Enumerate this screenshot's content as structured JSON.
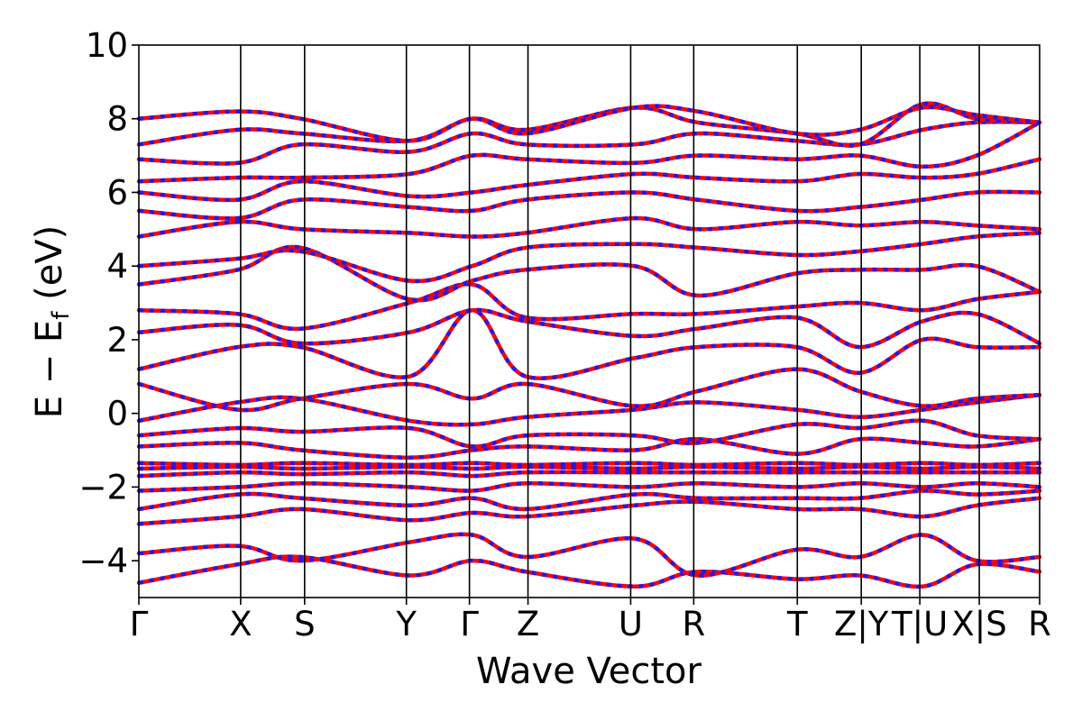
{
  "chart_data": {
    "type": "line",
    "title": "",
    "xlabel": "Wave Vector",
    "ylabel_main": "E − E",
    "ylabel_sub": "f",
    "ylabel_unit": " (eV)",
    "ylim": [
      -5,
      10
    ],
    "yticks": [
      -4,
      -2,
      0,
      2,
      4,
      6,
      8,
      10
    ],
    "ytick_labels": [
      "−4",
      "−2",
      "0",
      "2",
      "4",
      "6",
      "8",
      "10"
    ],
    "kpoints": [
      {
        "label": "Γ",
        "pos": 0.0
      },
      {
        "label": "X",
        "pos": 0.113
      },
      {
        "label": "S",
        "pos": 0.184
      },
      {
        "label": "Y",
        "pos": 0.297
      },
      {
        "label": "Γ",
        "pos": 0.367
      },
      {
        "label": "Z",
        "pos": 0.432
      },
      {
        "label": "U",
        "pos": 0.546
      },
      {
        "label": "R",
        "pos": 0.616
      },
      {
        "label": "T",
        "pos": 0.731
      },
      {
        "label": "Z|Y",
        "pos": 0.802
      },
      {
        "label": "T|U",
        "pos": 0.867
      },
      {
        "label": "X|S",
        "pos": 0.933
      },
      {
        "label": "R",
        "pos": 1.0
      }
    ],
    "series_colors": {
      "primary": "#ff0000",
      "overlay": "#1a1aff"
    },
    "grid": false,
    "bands": [
      {
        "k": [
          0,
          0.11,
          0.18,
          0.3,
          0.37,
          0.43,
          0.55,
          0.62,
          0.73,
          0.8,
          0.87,
          0.93,
          1.0
        ],
        "e": [
          -4.6,
          -4.1,
          -3.9,
          -4.4,
          -4.0,
          -4.3,
          -4.7,
          -4.3,
          -4.5,
          -4.4,
          -4.7,
          -4.1,
          -4.3
        ]
      },
      {
        "k": [
          0,
          0.11,
          0.18,
          0.3,
          0.37,
          0.43,
          0.55,
          0.62,
          0.73,
          0.8,
          0.87,
          0.93,
          1.0
        ],
        "e": [
          -3.8,
          -3.6,
          -4.0,
          -3.5,
          -3.3,
          -3.9,
          -3.4,
          -4.4,
          -3.7,
          -3.9,
          -3.3,
          -4.0,
          -3.9
        ]
      },
      {
        "k": [
          0,
          0.11,
          0.18,
          0.3,
          0.37,
          0.43,
          0.55,
          0.62,
          0.73,
          0.8,
          0.87,
          0.93,
          1.0
        ],
        "e": [
          -3.0,
          -2.8,
          -2.6,
          -2.9,
          -2.7,
          -2.8,
          -2.5,
          -2.4,
          -2.6,
          -2.6,
          -2.8,
          -2.5,
          -2.3
        ]
      },
      {
        "k": [
          0,
          0.11,
          0.18,
          0.3,
          0.37,
          0.43,
          0.55,
          0.62,
          0.73,
          0.8,
          0.87,
          0.93,
          1.0
        ],
        "e": [
          -2.6,
          -2.2,
          -2.3,
          -2.5,
          -2.3,
          -2.6,
          -2.2,
          -2.3,
          -2.3,
          -2.3,
          -2.1,
          -2.2,
          -2.1
        ]
      },
      {
        "k": [
          0,
          0.11,
          0.18,
          0.3,
          0.37,
          0.43,
          0.55,
          0.62,
          0.73,
          0.8,
          0.87,
          0.93,
          1.0
        ],
        "e": [
          -2.1,
          -2.0,
          -1.9,
          -2.0,
          -2.1,
          -1.9,
          -2.0,
          -1.9,
          -2.0,
          -1.9,
          -2.0,
          -1.9,
          -2.0
        ]
      },
      {
        "k": [
          0,
          0.11,
          0.18,
          0.3,
          0.37,
          0.43,
          0.55,
          0.62,
          0.73,
          0.8,
          0.87,
          0.93,
          1.0
        ],
        "e": [
          -1.7,
          -1.6,
          -1.65,
          -1.6,
          -1.7,
          -1.6,
          -1.6,
          -1.6,
          -1.6,
          -1.6,
          -1.6,
          -1.6,
          -1.6
        ]
      },
      {
        "k": [
          0,
          0.11,
          0.18,
          0.3,
          0.37,
          0.43,
          0.55,
          0.62,
          0.73,
          0.8,
          0.87,
          0.93,
          1.0
        ],
        "e": [
          -1.5,
          -1.45,
          -1.5,
          -1.45,
          -1.5,
          -1.45,
          -1.5,
          -1.45,
          -1.5,
          -1.45,
          -1.5,
          -1.45,
          -1.5
        ]
      },
      {
        "k": [
          0,
          0.11,
          0.18,
          0.3,
          0.37,
          0.43,
          0.55,
          0.62,
          0.73,
          0.8,
          0.87,
          0.93,
          1.0
        ],
        "e": [
          -1.35,
          -1.4,
          -1.35,
          -1.4,
          -1.35,
          -1.4,
          -1.35,
          -1.4,
          -1.35,
          -1.4,
          -1.35,
          -1.4,
          -1.35
        ]
      },
      {
        "k": [
          0,
          0.11,
          0.18,
          0.3,
          0.37,
          0.43,
          0.55,
          0.62,
          0.73,
          0.8,
          0.87,
          0.93,
          1.0
        ],
        "e": [
          -0.9,
          -0.8,
          -1.0,
          -1.2,
          -1.0,
          -0.9,
          -1.0,
          -0.7,
          -1.1,
          -0.7,
          -0.8,
          -0.9,
          -0.7
        ]
      },
      {
        "k": [
          0,
          0.11,
          0.18,
          0.3,
          0.37,
          0.43,
          0.55,
          0.62,
          0.73,
          0.8,
          0.87,
          0.93,
          1.0
        ],
        "e": [
          -0.6,
          -0.4,
          -0.5,
          -0.4,
          -0.9,
          -0.6,
          -0.6,
          -0.8,
          -0.3,
          -0.4,
          -0.2,
          -0.6,
          -0.7
        ]
      },
      {
        "k": [
          0,
          0.11,
          0.18,
          0.3,
          0.37,
          0.43,
          0.55,
          0.62,
          0.73,
          0.8,
          0.87,
          0.93,
          1.0
        ],
        "e": [
          -0.2,
          0.3,
          0.4,
          -0.2,
          -0.3,
          -0.1,
          0.1,
          0.3,
          0.1,
          -0.1,
          0.1,
          0.3,
          0.5
        ]
      },
      {
        "k": [
          0,
          0.11,
          0.18,
          0.3,
          0.37,
          0.43,
          0.55,
          0.62,
          0.73,
          0.8,
          0.87,
          0.93,
          1.0
        ],
        "e": [
          0.8,
          0.1,
          0.4,
          0.8,
          0.4,
          0.8,
          0.2,
          0.6,
          1.2,
          0.6,
          0.2,
          0.4,
          0.5
        ]
      },
      {
        "k": [
          0,
          0.11,
          0.18,
          0.3,
          0.37,
          0.43,
          0.55,
          0.62,
          0.73,
          0.8,
          0.87,
          0.93,
          1.0
        ],
        "e": [
          1.2,
          1.8,
          1.8,
          1.0,
          2.8,
          1.0,
          1.5,
          1.8,
          1.8,
          1.1,
          2.0,
          1.8,
          1.8
        ]
      },
      {
        "k": [
          0,
          0.11,
          0.18,
          0.3,
          0.37,
          0.43,
          0.55,
          0.62,
          0.73,
          0.8,
          0.87,
          0.93,
          1.0
        ],
        "e": [
          2.2,
          2.4,
          1.9,
          2.2,
          2.8,
          2.5,
          2.1,
          2.3,
          2.6,
          1.8,
          2.5,
          2.7,
          1.9
        ]
      },
      {
        "k": [
          0,
          0.11,
          0.18,
          0.3,
          0.37,
          0.43,
          0.55,
          0.62,
          0.73,
          0.8,
          0.87,
          0.93,
          1.0
        ],
        "e": [
          2.8,
          2.7,
          2.3,
          3.0,
          3.5,
          2.6,
          2.7,
          2.7,
          2.9,
          3.0,
          2.8,
          3.1,
          3.3
        ]
      },
      {
        "k": [
          0,
          0.11,
          0.18,
          0.3,
          0.37,
          0.43,
          0.55,
          0.62,
          0.73,
          0.8,
          0.87,
          0.93,
          1.0
        ],
        "e": [
          3.5,
          3.9,
          4.5,
          3.1,
          3.6,
          3.9,
          4.0,
          3.2,
          3.8,
          3.9,
          3.9,
          4.0,
          3.3
        ]
      },
      {
        "k": [
          0,
          0.11,
          0.18,
          0.3,
          0.37,
          0.43,
          0.55,
          0.62,
          0.73,
          0.8,
          0.87,
          0.93,
          1.0
        ],
        "e": [
          4.0,
          4.2,
          4.4,
          3.6,
          4.0,
          4.5,
          4.6,
          4.5,
          4.3,
          4.4,
          4.6,
          4.8,
          4.9
        ]
      },
      {
        "k": [
          0,
          0.11,
          0.18,
          0.3,
          0.37,
          0.43,
          0.55,
          0.62,
          0.73,
          0.8,
          0.87,
          0.93,
          1.0
        ],
        "e": [
          4.8,
          5.2,
          5.0,
          4.9,
          4.8,
          4.9,
          5.3,
          5.0,
          5.2,
          5.1,
          5.2,
          5.1,
          5.0
        ]
      },
      {
        "k": [
          0,
          0.11,
          0.18,
          0.3,
          0.37,
          0.43,
          0.55,
          0.62,
          0.73,
          0.8,
          0.87,
          0.93,
          1.0
        ],
        "e": [
          5.5,
          5.3,
          5.8,
          5.6,
          5.5,
          5.8,
          6.0,
          5.8,
          5.5,
          5.6,
          5.8,
          6.0,
          6.0
        ]
      },
      {
        "k": [
          0,
          0.11,
          0.18,
          0.3,
          0.37,
          0.43,
          0.55,
          0.62,
          0.73,
          0.8,
          0.87,
          0.93,
          1.0
        ],
        "e": [
          6.0,
          5.8,
          6.3,
          5.9,
          6.0,
          6.2,
          6.5,
          6.4,
          6.3,
          6.5,
          6.4,
          6.5,
          6.9
        ]
      },
      {
        "k": [
          0,
          0.11,
          0.18,
          0.3,
          0.37,
          0.43,
          0.55,
          0.62,
          0.73,
          0.8,
          0.87,
          0.93,
          1.0
        ],
        "e": [
          6.3,
          6.4,
          6.4,
          6.5,
          7.0,
          6.9,
          6.8,
          7.0,
          6.9,
          7.0,
          6.7,
          7.0,
          7.9
        ]
      },
      {
        "k": [
          0,
          0.11,
          0.18,
          0.3,
          0.37,
          0.43,
          0.55,
          0.62,
          0.73,
          0.8,
          0.87,
          0.93,
          1.0
        ],
        "e": [
          6.9,
          6.8,
          7.3,
          7.1,
          7.6,
          7.3,
          7.3,
          7.6,
          7.4,
          7.3,
          7.7,
          7.9,
          7.9
        ]
      },
      {
        "k": [
          0,
          0.11,
          0.18,
          0.3,
          0.37,
          0.43,
          0.55,
          0.62,
          0.73,
          0.8,
          0.87,
          0.93,
          1.0
        ],
        "e": [
          7.3,
          7.7,
          7.6,
          7.4,
          8.0,
          7.7,
          8.3,
          7.9,
          7.6,
          7.3,
          8.4,
          8.0,
          7.9
        ]
      },
      {
        "k": [
          0,
          0.11,
          0.18,
          0.3,
          0.37,
          0.43,
          0.55,
          0.62,
          0.73,
          0.8,
          0.87,
          0.93,
          1.0
        ],
        "e": [
          8.0,
          8.2,
          8.0,
          7.4,
          8.0,
          7.6,
          8.3,
          8.2,
          7.6,
          7.7,
          8.3,
          8.1,
          7.9
        ]
      }
    ]
  }
}
